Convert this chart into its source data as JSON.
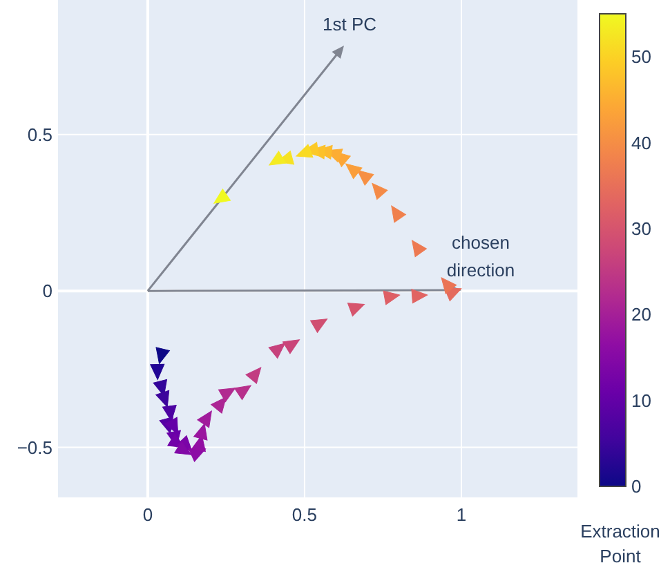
{
  "chart_data": {
    "type": "scatter",
    "xlim": [
      -0.286,
      1.37
    ],
    "ylim": [
      -0.66,
      0.93
    ],
    "xticks": [
      0,
      0.5,
      1
    ],
    "yticks": [
      {
        "value": -0.5,
        "label": "−0.5"
      },
      0,
      0.5
    ],
    "grid": true,
    "marker": "triangle",
    "clabel": "Extraction Point",
    "clim": [
      0,
      55
    ],
    "cticks": [
      0,
      10,
      20,
      30,
      40,
      50
    ],
    "series": [
      {
        "x": [
          0.043,
          0.031,
          0.045,
          0.054,
          0.072,
          0.065,
          0.084,
          0.087,
          0.094,
          0.123,
          0.116,
          0.16,
          0.167,
          0.174,
          0.189,
          0.233,
          0.256,
          0.307,
          0.344,
          0.417,
          0.461,
          0.549,
          0.666,
          0.777,
          0.865,
          0.975,
          0.953,
          0.858,
          0.792,
          0.733,
          0.689,
          0.652,
          0.615,
          0.593,
          0.564,
          0.542,
          0.52,
          0.498,
          0.439,
          0.41,
          0.233
        ],
        "values": [
          -0.207,
          -0.257,
          -0.31,
          -0.346,
          -0.39,
          -0.43,
          -0.434,
          -0.472,
          -0.487,
          -0.494,
          -0.51,
          -0.516,
          -0.487,
          -0.45,
          -0.406,
          -0.36,
          -0.324,
          -0.317,
          -0.265,
          -0.184,
          -0.17,
          -0.103,
          -0.052,
          -0.018,
          -0.015,
          -0.003,
          0.022,
          0.14,
          0.25,
          0.324,
          0.369,
          0.39,
          0.428,
          0.44,
          0.446,
          0.446,
          0.45,
          0.44,
          0.42,
          0.416,
          0.295
        ],
        "cvalues": [
          0,
          2,
          4,
          5,
          7,
          8,
          10,
          11,
          12,
          13,
          14,
          16,
          17,
          18,
          19,
          21,
          22,
          23,
          25,
          26,
          27,
          29,
          30,
          32,
          33,
          34,
          36,
          37,
          38,
          40,
          41,
          43,
          44,
          45,
          47,
          48,
          49,
          51,
          52,
          53,
          55
        ],
        "colors": [
          "#0d0887",
          "#200696",
          "#32059a",
          "#3c049c",
          "#4c02a1",
          "#5601a4",
          "#6400a7",
          "#6a00a8",
          "#7202a8",
          "#7a05a7",
          "#8109a6",
          "#8c0ca5",
          "#920fa3",
          "#9a159f",
          "#a11b9b",
          "#ac2694",
          "#b12a90",
          "#b7308b",
          "#c23c81",
          "#c7427c",
          "#ca4579",
          "#d04f71",
          "#d6556d",
          "#de5f65",
          "#e16462",
          "#e46a5d",
          "#ea7455",
          "#ed7952",
          "#f0804d",
          "#f48a47",
          "#f68f44",
          "#fa9e3b",
          "#fca636",
          "#fcad33",
          "#fcbb2d",
          "#fcc12a",
          "#fcc927",
          "#f9da24",
          "#f6e223",
          "#f4eb22",
          "#f0f921"
        ]
      }
    ],
    "annotations": [
      "1st PC",
      "chosen direction"
    ]
  }
}
